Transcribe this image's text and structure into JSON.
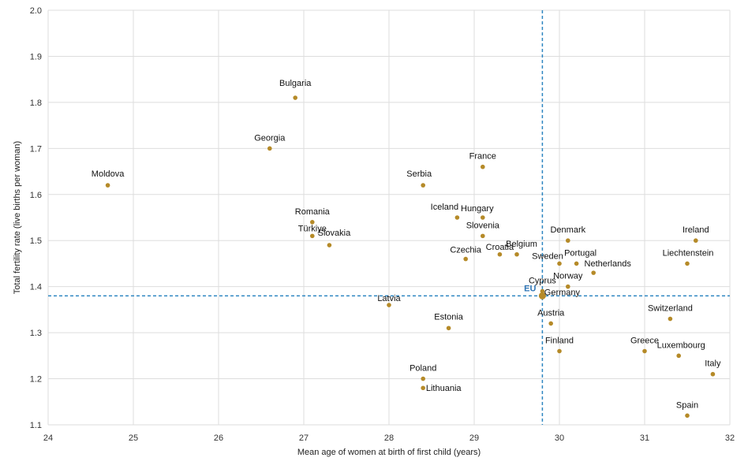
{
  "chart_data": {
    "type": "scatter",
    "title": "",
    "xlabel": "Mean age of women at birth of first child (years)",
    "ylabel": "Total fertility rate (live births per woman)",
    "xlim": [
      24,
      32
    ],
    "ylim": [
      1.1,
      2.0
    ],
    "x_ticks": [
      24,
      25,
      26,
      27,
      28,
      29,
      30,
      31,
      32
    ],
    "y_ticks": [
      1.1,
      1.2,
      1.3,
      1.4,
      1.5,
      1.6,
      1.7,
      1.8,
      1.9,
      2.0
    ],
    "grid": true,
    "colors": {
      "marker": "#b58a28",
      "reference_line": "#2e86c1",
      "eu_label": "#2e75b6"
    },
    "reference": {
      "label": "EU",
      "x": 29.8,
      "y": 1.38
    },
    "points": [
      {
        "label": "Moldova",
        "x": 24.7,
        "y": 1.62
      },
      {
        "label": "Bulgaria",
        "x": 26.9,
        "y": 1.81
      },
      {
        "label": "Georgia",
        "x": 26.6,
        "y": 1.7
      },
      {
        "label": "Romania",
        "x": 27.1,
        "y": 1.54
      },
      {
        "label": "Türkiye",
        "x": 27.1,
        "y": 1.51
      },
      {
        "label": "Slovakia",
        "x": 27.3,
        "y": 1.49
      },
      {
        "label": "Latvia",
        "x": 28.0,
        "y": 1.36
      },
      {
        "label": "Serbia",
        "x": 28.4,
        "y": 1.62
      },
      {
        "label": "Poland",
        "x": 28.4,
        "y": 1.2
      },
      {
        "label": "Lithuania",
        "x": 28.4,
        "y": 1.18
      },
      {
        "label": "Estonia",
        "x": 28.7,
        "y": 1.31
      },
      {
        "label": "Iceland",
        "x": 28.8,
        "y": 1.55
      },
      {
        "label": "Czechia",
        "x": 28.9,
        "y": 1.46
      },
      {
        "label": "France",
        "x": 29.1,
        "y": 1.66
      },
      {
        "label": "Hungary",
        "x": 29.1,
        "y": 1.55
      },
      {
        "label": "Slovenia",
        "x": 29.1,
        "y": 1.51
      },
      {
        "label": "Croatia",
        "x": 29.3,
        "y": 1.47
      },
      {
        "label": "Belgium",
        "x": 29.5,
        "y": 1.47
      },
      {
        "label": "Cyprus",
        "x": 29.8,
        "y": 1.39
      },
      {
        "label": "Germany",
        "x": 29.8,
        "y": 1.38
      },
      {
        "label": "Austria",
        "x": 29.9,
        "y": 1.32
      },
      {
        "label": "Sweden",
        "x": 30.0,
        "y": 1.45
      },
      {
        "label": "Finland",
        "x": 30.0,
        "y": 1.26
      },
      {
        "label": "Denmark",
        "x": 30.1,
        "y": 1.5
      },
      {
        "label": "Norway",
        "x": 30.1,
        "y": 1.4
      },
      {
        "label": "Portugal",
        "x": 30.2,
        "y": 1.45
      },
      {
        "label": "Netherlands",
        "x": 30.4,
        "y": 1.43
      },
      {
        "label": "Greece",
        "x": 31.0,
        "y": 1.26
      },
      {
        "label": "Switzerland",
        "x": 31.3,
        "y": 1.33
      },
      {
        "label": "Luxembourg",
        "x": 31.4,
        "y": 1.25
      },
      {
        "label": "Liechtenstein",
        "x": 31.5,
        "y": 1.45
      },
      {
        "label": "Spain",
        "x": 31.5,
        "y": 1.12
      },
      {
        "label": "Ireland",
        "x": 31.6,
        "y": 1.5
      },
      {
        "label": "Italy",
        "x": 31.8,
        "y": 1.21
      }
    ]
  }
}
